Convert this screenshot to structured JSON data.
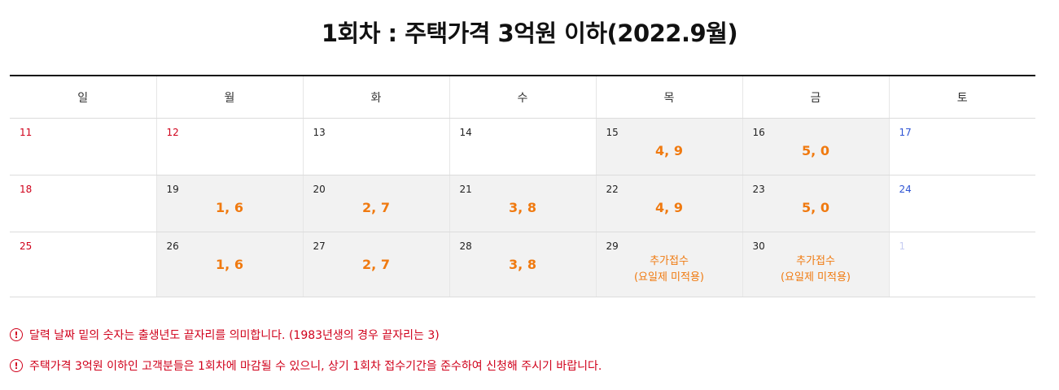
{
  "title": "1회차 : 주택가격 3억원 이하(2022.9월)",
  "weekdays": [
    "일",
    "월",
    "화",
    "수",
    "목",
    "금",
    "토"
  ],
  "weeks": [
    [
      {
        "day": "11",
        "note": ""
      },
      {
        "day": "12",
        "note": ""
      },
      {
        "day": "13",
        "note": ""
      },
      {
        "day": "14",
        "note": ""
      },
      {
        "day": "15",
        "note": "4, 9"
      },
      {
        "day": "16",
        "note": "5, 0"
      },
      {
        "day": "17",
        "note": ""
      }
    ],
    [
      {
        "day": "18",
        "note": ""
      },
      {
        "day": "19",
        "note": "1, 6"
      },
      {
        "day": "20",
        "note": "2, 7"
      },
      {
        "day": "21",
        "note": "3, 8"
      },
      {
        "day": "22",
        "note": "4, 9"
      },
      {
        "day": "23",
        "note": "5, 0"
      },
      {
        "day": "24",
        "note": ""
      }
    ],
    [
      {
        "day": "25",
        "note": ""
      },
      {
        "day": "26",
        "note": "1, 6"
      },
      {
        "day": "27",
        "note": "2, 7"
      },
      {
        "day": "28",
        "note": "3, 8"
      },
      {
        "day": "29",
        "note": "추가접수",
        "note2": "(요일제 미적용)"
      },
      {
        "day": "30",
        "note": "추가접수",
        "note2": "(요일제 미적용)"
      },
      {
        "day": "1",
        "note": ""
      }
    ]
  ],
  "notices": [
    {
      "icon": "!",
      "text": "달력 날짜 밑의 숫자는 출생년도 끝자리를 의미합니다. (1983년생의 경우 끝자리는 3)"
    },
    {
      "icon": "!",
      "text": "주택가격 3억원 이하인 고객분들은 1회차에 마감될 수 있으니, 상기 1회차 접수기간을 준수하여 신청해 주시기 바랍니다."
    }
  ],
  "colors": {
    "sunday": "#d0011b",
    "saturday": "#2f55d4",
    "note": "#f07a10",
    "notice": "#d0011b",
    "shaded_cell": "#f2f2f2"
  }
}
